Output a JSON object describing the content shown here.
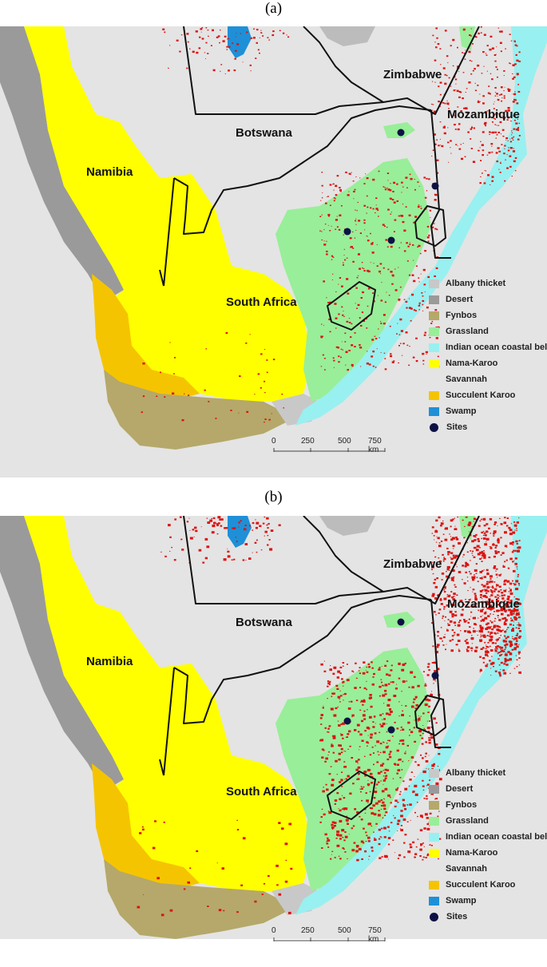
{
  "panels": [
    {
      "caption": "(a)",
      "labels": {
        "namibia": "Namibia",
        "botswana": "Botswana",
        "zimbabwe": "Zimbabwe",
        "mozambique": "Mozambique",
        "south_africa": "South Africa"
      },
      "crop_density": "low",
      "scale": {
        "ticks": [
          "0",
          "250",
          "500",
          "750 km"
        ]
      }
    },
    {
      "caption": "(b)",
      "labels": {
        "namibia": "Namibia",
        "botswana": "Botswana",
        "zimbabwe": "Zimbabwe",
        "mozambique": "Mozambique",
        "south_africa": "South Africa"
      },
      "crop_density": "high",
      "scale": {
        "ticks": [
          "0",
          "250",
          "500",
          "750 km"
        ]
      }
    }
  ],
  "legend": [
    {
      "label": "Albany thicket",
      "color": "#c8c8c8",
      "kind": "swatch"
    },
    {
      "label": "Desert",
      "color": "#9a9a9a",
      "kind": "swatch"
    },
    {
      "label": "Fynbos",
      "color": "#b5a86a",
      "kind": "swatch"
    },
    {
      "label": "Grassland",
      "color": "#99ee99",
      "kind": "swatch"
    },
    {
      "label": "Indian ocean coastal belt",
      "color": "#99f0f0",
      "kind": "swatch"
    },
    {
      "label": "Nama-Karoo",
      "color": "#ffff00",
      "kind": "swatch"
    },
    {
      "label": "Savannah",
      "color": "#e4e4e4",
      "kind": "swatch"
    },
    {
      "label": "Succulent Karoo",
      "color": "#f5c400",
      "kind": "swatch"
    },
    {
      "label": "Swamp",
      "color": "#1e90d8",
      "kind": "swatch"
    },
    {
      "label": "Sites",
      "color": "#0d1244",
      "kind": "dot"
    }
  ],
  "colors": {
    "savannah": "#e4e4e4",
    "desert": "#9a9a9a",
    "nama_karoo": "#ffff00",
    "succulent_karoo": "#f5c400",
    "fynbos": "#b5a86a",
    "grassland": "#99ee99",
    "coastal_belt": "#99f0f0",
    "albany": "#c8c8c8",
    "swamp": "#1e90d8",
    "sites": "#0d1244",
    "cropland": "#dd1111",
    "border": "#111111"
  }
}
